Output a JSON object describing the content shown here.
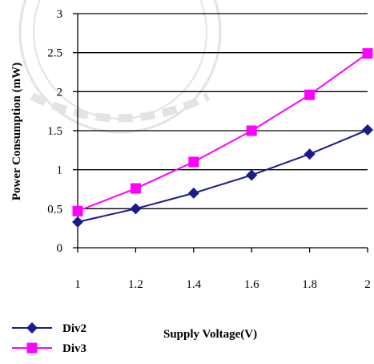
{
  "chart_data": {
    "type": "line",
    "xlabel": "Supply Voltage(V)",
    "ylabel": "Power Consumption (mW)",
    "x": [
      1,
      1.2,
      1.4,
      1.6,
      1.8,
      2
    ],
    "xlim": [
      1,
      2
    ],
    "ylim": [
      0,
      3
    ],
    "xticks": [
      "1",
      "1.2",
      "1.4",
      "1.6",
      "1.8",
      "2"
    ],
    "yticks": [
      "0",
      "0.5",
      "1",
      "1.5",
      "2",
      "2.5",
      "3"
    ],
    "ytick_values": [
      0,
      0.5,
      1,
      1.5,
      2,
      2.5,
      3
    ],
    "grid": true,
    "legend_position": "bottom-left",
    "series": [
      {
        "name": "Div2",
        "values": [
          0.33,
          0.5,
          0.7,
          0.93,
          1.2,
          1.51
        ],
        "color": "#1a1a8c",
        "marker": "diamond"
      },
      {
        "name": "Div3",
        "values": [
          0.47,
          0.76,
          1.1,
          1.5,
          1.96,
          2.49
        ],
        "color": "#ff00ff",
        "marker": "square"
      }
    ]
  }
}
